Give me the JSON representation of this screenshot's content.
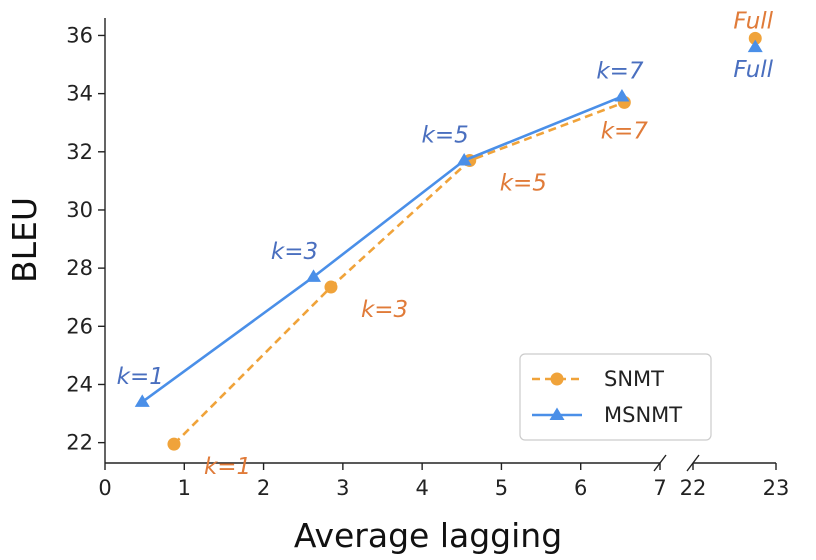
{
  "chart_data": {
    "type": "line",
    "xlabel": "Average lagging",
    "ylabel": "BLEU",
    "ylim": [
      21.3,
      36.6
    ],
    "yticks": [
      22,
      24,
      26,
      28,
      30,
      32,
      34,
      36
    ],
    "x_segments": [
      {
        "range": [
          0,
          7.0
        ],
        "ticks": [
          0,
          1,
          2,
          3,
          4,
          5,
          6,
          7
        ]
      },
      {
        "range": [
          22,
          23
        ],
        "ticks": [
          22,
          23
        ]
      }
    ],
    "x_break": true,
    "grid": false,
    "legend_position": "bottom-right",
    "colors": {
      "SNMT": "#f0a33a",
      "MSNMT": "#4a8fe8",
      "SNMT_text": "#e07b39",
      "MSNMT_text": "#4a6fbf"
    },
    "series": [
      {
        "name": "SNMT",
        "style": "dashed",
        "marker": "circle",
        "points": [
          {
            "x": 0.87,
            "y": 21.95,
            "label": "k=1",
            "label_pos": "right-below"
          },
          {
            "x": 2.85,
            "y": 27.35,
            "label": "k=3",
            "label_pos": "right-below"
          },
          {
            "x": 4.6,
            "y": 31.7,
            "label": "k=5",
            "label_pos": "right-below"
          },
          {
            "x": 6.55,
            "y": 33.7,
            "label": "k=7",
            "label_pos": "below"
          }
        ],
        "full": {
          "x": 22.75,
          "y": 35.9,
          "label": "Full",
          "label_pos": "above"
        }
      },
      {
        "name": "MSNMT",
        "style": "solid",
        "marker": "triangle",
        "points": [
          {
            "x": 0.47,
            "y": 23.4,
            "label": "k=1",
            "label_pos": "above"
          },
          {
            "x": 2.63,
            "y": 27.7,
            "label": "k=3",
            "label_pos": "above-left"
          },
          {
            "x": 4.53,
            "y": 31.7,
            "label": "k=5",
            "label_pos": "above-left"
          },
          {
            "x": 6.52,
            "y": 33.9,
            "label": "k=7",
            "label_pos": "above"
          }
        ],
        "full": {
          "x": 22.75,
          "y": 35.6,
          "label": "Full",
          "label_pos": "below"
        }
      }
    ]
  }
}
